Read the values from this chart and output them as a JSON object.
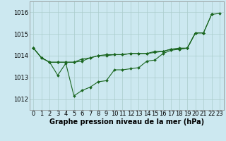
{
  "background_color": "#cce8f0",
  "grid_color": "#aacccc",
  "line_color": "#1a6620",
  "marker_color": "#1a6620",
  "xlabel": "Graphe pression niveau de la mer (hPa)",
  "xlabel_fontsize": 7,
  "tick_fontsize": 6,
  "xlim": [
    -0.5,
    23.5
  ],
  "ylim": [
    1011.5,
    1016.5
  ],
  "yticks": [
    1012,
    1013,
    1014,
    1015,
    1016
  ],
  "xticks": [
    0,
    1,
    2,
    3,
    4,
    5,
    6,
    7,
    8,
    9,
    10,
    11,
    12,
    13,
    14,
    15,
    16,
    17,
    18,
    19,
    20,
    21,
    22,
    23
  ],
  "series": [
    [
      1014.35,
      1013.9,
      1013.7,
      1013.7,
      1013.7,
      1013.7,
      1013.75,
      1013.9,
      1014.0,
      1014.0,
      1014.05,
      1014.05,
      1014.1,
      1014.1,
      1014.1,
      1014.15,
      1014.2,
      1014.3,
      1014.3,
      1014.35,
      1015.05,
      1015.05,
      null,
      null
    ],
    [
      1014.35,
      1013.9,
      1013.7,
      1013.7,
      1013.7,
      1013.7,
      1013.85,
      1013.9,
      1014.0,
      1014.05,
      1014.05,
      1014.05,
      1014.1,
      1014.1,
      1014.1,
      1014.2,
      1014.2,
      1014.3,
      1014.35,
      1014.35,
      1015.05,
      1015.05,
      1015.9,
      null
    ],
    [
      1014.35,
      1013.9,
      1013.7,
      1013.1,
      1013.65,
      1012.15,
      1012.4,
      1012.55,
      1012.8,
      1012.85,
      1013.35,
      1013.35,
      1013.4,
      1013.45,
      1013.75,
      1013.8,
      1014.1,
      1014.25,
      1014.3,
      1014.35,
      1015.05,
      1015.05,
      1015.9,
      null
    ],
    [
      null,
      null,
      null,
      null,
      null,
      null,
      null,
      null,
      null,
      null,
      null,
      null,
      null,
      null,
      null,
      null,
      null,
      null,
      null,
      null,
      null,
      null,
      1015.9,
      1015.95
    ]
  ]
}
